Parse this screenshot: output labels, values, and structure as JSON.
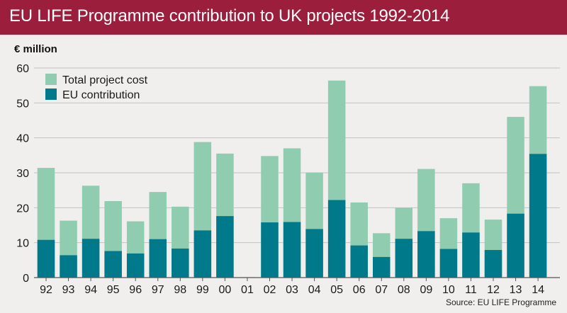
{
  "header": {
    "title": "EU LIFE Programme contribution to UK projects 1992-2014"
  },
  "unit_label": "€ million",
  "source": "Source: EU LIFE Programme",
  "colors": {
    "title_bg": "#9b1f3c",
    "total": "#8fccb0",
    "eu": "#00798b",
    "background": "#f0efed",
    "grid": "#c2c2c2"
  },
  "chart_data": {
    "type": "bar",
    "stacked": "overlay",
    "title": "EU LIFE Programme contribution to UK projects 1992-2014",
    "ylabel": "€ million",
    "ylim": [
      0,
      60
    ],
    "yticks": [
      0,
      10,
      20,
      30,
      40,
      50,
      60
    ],
    "grid": true,
    "legend_position": "top-left",
    "categories": [
      "92",
      "93",
      "94",
      "95",
      "96",
      "97",
      "98",
      "99",
      "00",
      "01",
      "02",
      "03",
      "04",
      "05",
      "06",
      "07",
      "08",
      "09",
      "10",
      "11",
      "12",
      "13",
      "14"
    ],
    "series": [
      {
        "name": "Total project cost",
        "color": "#8fccb0",
        "values": [
          31.4,
          16.3,
          26.3,
          21.9,
          16.1,
          24.5,
          20.3,
          38.8,
          35.5,
          0.2,
          34.8,
          37.0,
          30.1,
          56.4,
          21.5,
          12.7,
          20.0,
          31.1,
          17.0,
          27.0,
          16.6,
          46.0,
          54.8
        ]
      },
      {
        "name": "EU contribution",
        "color": "#00798b",
        "values": [
          10.8,
          6.4,
          11.1,
          7.6,
          6.9,
          11.0,
          8.3,
          13.5,
          17.6,
          0.1,
          15.8,
          15.9,
          13.9,
          22.2,
          9.2,
          5.9,
          11.1,
          13.3,
          8.2,
          12.9,
          7.9,
          18.3,
          35.4
        ]
      }
    ]
  }
}
